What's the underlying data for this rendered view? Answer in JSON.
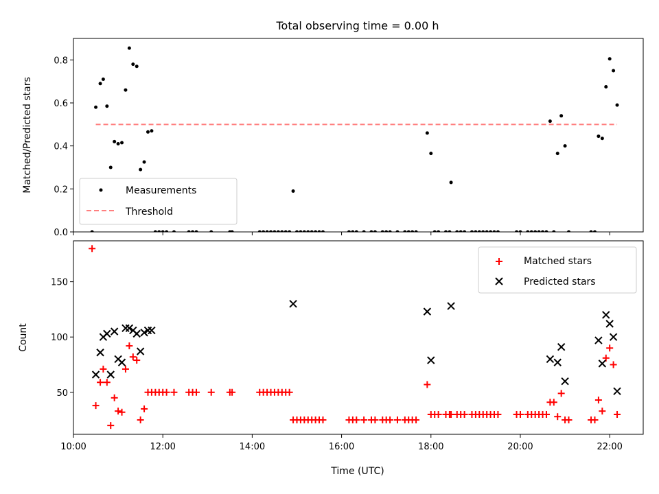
{
  "chart_data": [
    {
      "type": "scatter",
      "title": "Total observing time = 0.00 h",
      "ylabel": "Matched/Predicted stars",
      "xlabel": "",
      "xlim": [
        "10:00",
        "22:45"
      ],
      "ylim": [
        0,
        0.9
      ],
      "yticks": [
        0.0,
        0.2,
        0.4,
        0.6,
        0.8
      ],
      "yticklabels": [
        "0.0",
        "0.2",
        "0.4",
        "0.6",
        "0.8"
      ],
      "xticks": [
        "10:00",
        "12:00",
        "14:00",
        "16:00",
        "18:00",
        "20:00",
        "22:00"
      ],
      "show_x_tick_labels": false,
      "grid": false,
      "legend": "lower-left",
      "series": [
        {
          "name": "Measurements",
          "marker": "dot",
          "color": "#000000",
          "points": [
            [
              "10:25",
              0.0
            ],
            [
              "10:30",
              0.58
            ],
            [
              "10:36",
              0.69
            ],
            [
              "10:40",
              0.71
            ],
            [
              "10:45",
              0.585
            ],
            [
              "10:50",
              0.3
            ],
            [
              "10:55",
              0.42
            ],
            [
              "11:00",
              0.41
            ],
            [
              "11:05",
              0.415
            ],
            [
              "11:10",
              0.66
            ],
            [
              "11:15",
              0.855
            ],
            [
              "11:20",
              0.78
            ],
            [
              "11:25",
              0.77
            ],
            [
              "11:30",
              0.29
            ],
            [
              "11:35",
              0.325
            ],
            [
              "11:40",
              0.465
            ],
            [
              "11:45",
              0.47
            ],
            [
              "11:50",
              0.0
            ],
            [
              "11:55",
              0.0
            ],
            [
              "12:00",
              0.0
            ],
            [
              "12:05",
              0.0
            ],
            [
              "12:15",
              0.0
            ],
            [
              "12:35",
              0.0
            ],
            [
              "12:40",
              0.0
            ],
            [
              "12:45",
              0.0
            ],
            [
              "13:05",
              0.0
            ],
            [
              "13:30",
              0.0
            ],
            [
              "13:33",
              0.0
            ],
            [
              "14:10",
              0.0
            ],
            [
              "14:15",
              0.0
            ],
            [
              "14:20",
              0.0
            ],
            [
              "14:25",
              0.0
            ],
            [
              "14:30",
              0.0
            ],
            [
              "14:35",
              0.0
            ],
            [
              "14:40",
              0.0
            ],
            [
              "14:45",
              0.0
            ],
            [
              "14:50",
              0.0
            ],
            [
              "14:55",
              0.19
            ],
            [
              "15:00",
              0.0
            ],
            [
              "15:05",
              0.0
            ],
            [
              "15:10",
              0.0
            ],
            [
              "15:15",
              0.0
            ],
            [
              "15:20",
              0.0
            ],
            [
              "15:25",
              0.0
            ],
            [
              "15:30",
              0.0
            ],
            [
              "15:35",
              0.0
            ],
            [
              "16:10",
              0.0
            ],
            [
              "16:15",
              0.0
            ],
            [
              "16:20",
              0.0
            ],
            [
              "16:30",
              0.0
            ],
            [
              "16:40",
              0.0
            ],
            [
              "16:45",
              0.0
            ],
            [
              "16:55",
              0.0
            ],
            [
              "17:00",
              0.0
            ],
            [
              "17:05",
              0.0
            ],
            [
              "17:15",
              0.0
            ],
            [
              "17:25",
              0.0
            ],
            [
              "17:30",
              0.0
            ],
            [
              "17:35",
              0.0
            ],
            [
              "17:40",
              0.0
            ],
            [
              "17:55",
              0.46
            ],
            [
              "18:00",
              0.365
            ],
            [
              "18:05",
              0.0
            ],
            [
              "18:10",
              0.0
            ],
            [
              "18:20",
              0.0
            ],
            [
              "18:25",
              0.0
            ],
            [
              "18:27",
              0.23
            ],
            [
              "18:35",
              0.0
            ],
            [
              "18:40",
              0.0
            ],
            [
              "18:45",
              0.0
            ],
            [
              "18:55",
              0.0
            ],
            [
              "19:00",
              0.0
            ],
            [
              "19:05",
              0.0
            ],
            [
              "19:10",
              0.0
            ],
            [
              "19:15",
              0.0
            ],
            [
              "19:20",
              0.0
            ],
            [
              "19:25",
              0.0
            ],
            [
              "19:30",
              0.0
            ],
            [
              "19:55",
              0.0
            ],
            [
              "20:00",
              0.0
            ],
            [
              "20:10",
              0.0
            ],
            [
              "20:15",
              0.0
            ],
            [
              "20:20",
              0.0
            ],
            [
              "20:25",
              0.0
            ],
            [
              "20:30",
              0.0
            ],
            [
              "20:35",
              0.0
            ],
            [
              "20:40",
              0.515
            ],
            [
              "20:45",
              0.0
            ],
            [
              "20:50",
              0.365
            ],
            [
              "20:55",
              0.54
            ],
            [
              "21:00",
              0.4
            ],
            [
              "21:05",
              0.0
            ],
            [
              "21:35",
              0.0
            ],
            [
              "21:40",
              0.0
            ],
            [
              "21:45",
              0.445
            ],
            [
              "21:50",
              0.435
            ],
            [
              "21:55",
              0.675
            ],
            [
              "22:00",
              0.805
            ],
            [
              "22:05",
              0.75
            ],
            [
              "22:10",
              0.59
            ]
          ]
        },
        {
          "name": "Threshold",
          "marker": "dashed-line",
          "color": "#ff7f7f",
          "points": [
            [
              "10:30",
              0.5
            ],
            [
              "22:10",
              0.5
            ]
          ]
        }
      ]
    },
    {
      "type": "scatter",
      "title": "",
      "xlabel": "Time (UTC)",
      "ylabel": "Count",
      "xlim": [
        "10:00",
        "22:45"
      ],
      "ylim": [
        12,
        187
      ],
      "yticks": [
        50,
        100,
        150
      ],
      "yticklabels": [
        "50",
        "100",
        "150"
      ],
      "xticks": [
        "10:00",
        "12:00",
        "14:00",
        "16:00",
        "18:00",
        "20:00",
        "22:00"
      ],
      "xticklabels": [
        "10:00",
        "12:00",
        "14:00",
        "16:00",
        "18:00",
        "20:00",
        "22:00"
      ],
      "grid": false,
      "legend": "top-right",
      "series": [
        {
          "name": "Matched stars",
          "marker": "plus",
          "color": "#ff0000",
          "points": [
            [
              "10:25",
              180
            ],
            [
              "10:30",
              38
            ],
            [
              "10:36",
              59
            ],
            [
              "10:40",
              71
            ],
            [
              "10:45",
              59
            ],
            [
              "10:50",
              20
            ],
            [
              "10:55",
              45
            ],
            [
              "11:00",
              33
            ],
            [
              "11:05",
              32
            ],
            [
              "11:10",
              71
            ],
            [
              "11:15",
              92
            ],
            [
              "11:20",
              82
            ],
            [
              "11:25",
              79
            ],
            [
              "11:30",
              25
            ],
            [
              "11:35",
              35
            ],
            [
              "11:40",
              50
            ],
            [
              "11:45",
              50
            ],
            [
              "11:50",
              50
            ],
            [
              "11:55",
              50
            ],
            [
              "12:00",
              50
            ],
            [
              "12:05",
              50
            ],
            [
              "12:15",
              50
            ],
            [
              "12:35",
              50
            ],
            [
              "12:40",
              50
            ],
            [
              "12:45",
              50
            ],
            [
              "13:05",
              50
            ],
            [
              "13:30",
              50
            ],
            [
              "13:33",
              50
            ],
            [
              "14:10",
              50
            ],
            [
              "14:15",
              50
            ],
            [
              "14:20",
              50
            ],
            [
              "14:25",
              50
            ],
            [
              "14:30",
              50
            ],
            [
              "14:35",
              50
            ],
            [
              "14:40",
              50
            ],
            [
              "14:45",
              50
            ],
            [
              "14:50",
              50
            ],
            [
              "14:55",
              25
            ],
            [
              "15:00",
              25
            ],
            [
              "15:05",
              25
            ],
            [
              "15:10",
              25
            ],
            [
              "15:15",
              25
            ],
            [
              "15:20",
              25
            ],
            [
              "15:25",
              25
            ],
            [
              "15:30",
              25
            ],
            [
              "15:35",
              25
            ],
            [
              "16:10",
              25
            ],
            [
              "16:15",
              25
            ],
            [
              "16:20",
              25
            ],
            [
              "16:30",
              25
            ],
            [
              "16:40",
              25
            ],
            [
              "16:45",
              25
            ],
            [
              "16:55",
              25
            ],
            [
              "17:00",
              25
            ],
            [
              "17:05",
              25
            ],
            [
              "17:15",
              25
            ],
            [
              "17:25",
              25
            ],
            [
              "17:30",
              25
            ],
            [
              "17:35",
              25
            ],
            [
              "17:40",
              25
            ],
            [
              "17:55",
              57
            ],
            [
              "18:00",
              30
            ],
            [
              "18:05",
              30
            ],
            [
              "18:10",
              30
            ],
            [
              "18:20",
              30
            ],
            [
              "18:25",
              30
            ],
            [
              "18:27",
              30
            ],
            [
              "18:35",
              30
            ],
            [
              "18:40",
              30
            ],
            [
              "18:45",
              30
            ],
            [
              "18:55",
              30
            ],
            [
              "19:00",
              30
            ],
            [
              "19:05",
              30
            ],
            [
              "19:10",
              30
            ],
            [
              "19:15",
              30
            ],
            [
              "19:20",
              30
            ],
            [
              "19:25",
              30
            ],
            [
              "19:30",
              30
            ],
            [
              "19:55",
              30
            ],
            [
              "20:00",
              30
            ],
            [
              "20:10",
              30
            ],
            [
              "20:15",
              30
            ],
            [
              "20:20",
              30
            ],
            [
              "20:25",
              30
            ],
            [
              "20:30",
              30
            ],
            [
              "20:35",
              30
            ],
            [
              "20:40",
              41
            ],
            [
              "20:45",
              41
            ],
            [
              "20:50",
              28
            ],
            [
              "20:55",
              49
            ],
            [
              "21:00",
              25
            ],
            [
              "21:05",
              25
            ],
            [
              "21:35",
              25
            ],
            [
              "21:40",
              25
            ],
            [
              "21:45",
              43
            ],
            [
              "21:50",
              33
            ],
            [
              "21:55",
              81
            ],
            [
              "22:00",
              90
            ],
            [
              "22:05",
              75
            ],
            [
              "22:10",
              30
            ]
          ]
        },
        {
          "name": "Predicted stars",
          "marker": "x",
          "color": "#000000",
          "points": [
            [
              "10:30",
              66
            ],
            [
              "10:36",
              86
            ],
            [
              "10:40",
              100
            ],
            [
              "10:45",
              103
            ],
            [
              "10:50",
              66
            ],
            [
              "10:55",
              105
            ],
            [
              "11:00",
              80
            ],
            [
              "11:05",
              77
            ],
            [
              "11:10",
              108
            ],
            [
              "11:15",
              108
            ],
            [
              "11:20",
              106
            ],
            [
              "11:25",
              103
            ],
            [
              "11:30",
              87
            ],
            [
              "11:35",
              104
            ],
            [
              "11:40",
              106
            ],
            [
              "11:45",
              106
            ],
            [
              "14:55",
              130
            ],
            [
              "17:55",
              123
            ],
            [
              "18:00",
              79
            ],
            [
              "18:27",
              128
            ],
            [
              "20:40",
              80
            ],
            [
              "20:50",
              77
            ],
            [
              "20:55",
              91
            ],
            [
              "21:00",
              60
            ],
            [
              "21:45",
              97
            ],
            [
              "21:50",
              76
            ],
            [
              "21:55",
              120
            ],
            [
              "22:00",
              112
            ],
            [
              "22:05",
              100
            ],
            [
              "22:10",
              51
            ]
          ]
        }
      ]
    }
  ]
}
